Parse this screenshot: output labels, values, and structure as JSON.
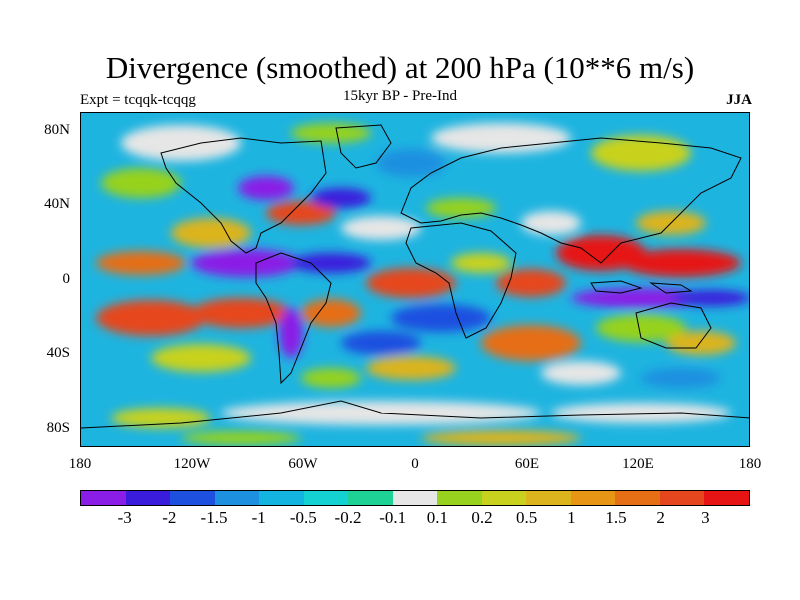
{
  "title": "Divergence (smoothed) at 200 hPa (10**6 m/s)",
  "experiment": "Expt = tcqqk-tcqqg",
  "period": "15kyr BP - Pre-Ind",
  "season": "JJA",
  "map": {
    "lat_labels": [
      "80N",
      "40N",
      "0",
      "40S",
      "80S"
    ],
    "lon_labels": [
      "180",
      "120W",
      "60W",
      "0",
      "60E",
      "120E",
      "180"
    ]
  },
  "colorbar": {
    "colors": [
      "#8a1ee6",
      "#3a1cdc",
      "#1e50e0",
      "#1e90e0",
      "#14b4e0",
      "#14d2d2",
      "#1ed296",
      "#e6e6e6",
      "#96d21e",
      "#c8d21e",
      "#dcb41e",
      "#e69614",
      "#e66e14",
      "#e6461e",
      "#e61414"
    ],
    "labels": [
      "-3",
      "-2",
      "-1.5",
      "-1",
      "-0.5",
      "-0.2",
      "-0.1",
      "0.1",
      "0.2",
      "0.5",
      "1",
      "1.5",
      "2",
      "3"
    ]
  }
}
